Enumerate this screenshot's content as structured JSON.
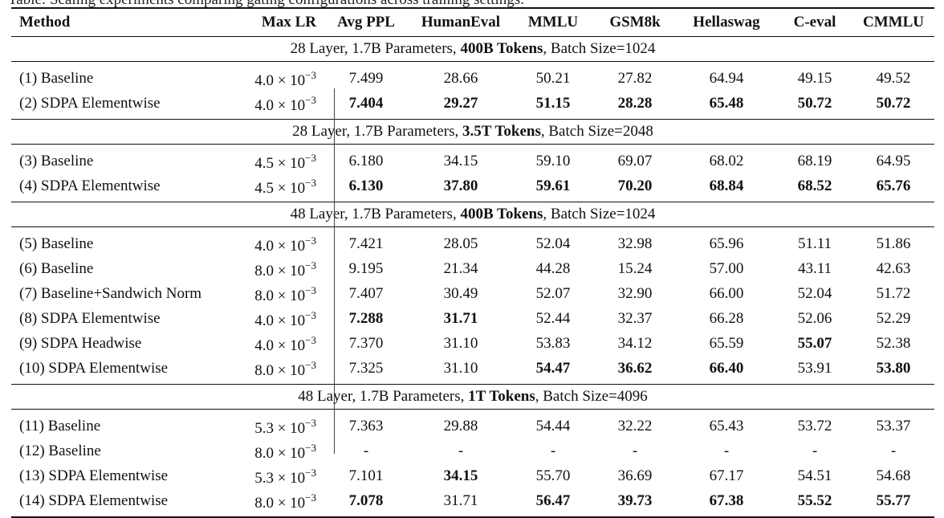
{
  "caption_fragment": "Table: Scaling experiments comparing gating configurations across training settings.",
  "headers": [
    "Method",
    "Max LR",
    "Avg PPL",
    "HumanEval",
    "MMLU",
    "GSM8k",
    "Hellaswag",
    "C-eval",
    "CMMLU"
  ],
  "sections": [
    {
      "prefix": "28 Layer, 1.7B Parameters, ",
      "tokens": "400B Tokens",
      "suffix": ", Batch Size=1024",
      "rows": [
        {
          "method": "(1) Baseline",
          "lr_base": "4.0 × 10",
          "lr_exp": "−3",
          "vals": [
            "7.499",
            "28.66",
            "50.21",
            "27.82",
            "64.94",
            "49.15",
            "49.52"
          ],
          "bold": [
            false,
            false,
            false,
            false,
            false,
            false,
            false
          ]
        },
        {
          "method": "(2) SDPA Elementwise",
          "lr_base": "4.0 × 10",
          "lr_exp": "−3",
          "vals": [
            "7.404",
            "29.27",
            "51.15",
            "28.28",
            "65.48",
            "50.72",
            "50.72"
          ],
          "bold": [
            true,
            true,
            true,
            true,
            true,
            true,
            true
          ]
        }
      ]
    },
    {
      "prefix": "28 Layer, 1.7B Parameters, ",
      "tokens": "3.5T Tokens",
      "suffix": ", Batch Size=2048",
      "rows": [
        {
          "method": "(3) Baseline",
          "lr_base": "4.5 × 10",
          "lr_exp": "−3",
          "vals": [
            "6.180",
            "34.15",
            "59.10",
            "69.07",
            "68.02",
            "68.19",
            "64.95"
          ],
          "bold": [
            false,
            false,
            false,
            false,
            false,
            false,
            false
          ]
        },
        {
          "method": "(4) SDPA Elementwise",
          "lr_base": "4.5 × 10",
          "lr_exp": "−3",
          "vals": [
            "6.130",
            "37.80",
            "59.61",
            "70.20",
            "68.84",
            "68.52",
            "65.76"
          ],
          "bold": [
            true,
            true,
            true,
            true,
            true,
            true,
            true
          ]
        }
      ]
    },
    {
      "prefix": "48 Layer, 1.7B Parameters, ",
      "tokens": "400B Tokens",
      "suffix": ", Batch Size=1024",
      "rows": [
        {
          "method": "(5) Baseline",
          "lr_base": "4.0 × 10",
          "lr_exp": "−3",
          "vals": [
            "7.421",
            "28.05",
            "52.04",
            "32.98",
            "65.96",
            "51.11",
            "51.86"
          ],
          "bold": [
            false,
            false,
            false,
            false,
            false,
            false,
            false
          ]
        },
        {
          "method": "(6) Baseline",
          "lr_base": "8.0 × 10",
          "lr_exp": "−3",
          "vals": [
            "9.195",
            "21.34",
            "44.28",
            "15.24",
            "57.00",
            "43.11",
            "42.63"
          ],
          "bold": [
            false,
            false,
            false,
            false,
            false,
            false,
            false
          ]
        },
        {
          "method": "(7) Baseline+Sandwich Norm",
          "lr_base": "8.0 × 10",
          "lr_exp": "−3",
          "vals": [
            "7.407",
            "30.49",
            "52.07",
            "32.90",
            "66.00",
            "52.04",
            "51.72"
          ],
          "bold": [
            false,
            false,
            false,
            false,
            false,
            false,
            false
          ]
        },
        {
          "method": "(8) SDPA Elementwise",
          "lr_base": "4.0 × 10",
          "lr_exp": "−3",
          "vals": [
            "7.288",
            "31.71",
            "52.44",
            "32.37",
            "66.28",
            "52.06",
            "52.29"
          ],
          "bold": [
            true,
            true,
            false,
            false,
            false,
            false,
            false
          ]
        },
        {
          "method": "(9) SDPA Headwise",
          "lr_base": "4.0 × 10",
          "lr_exp": "−3",
          "vals": [
            "7.370",
            "31.10",
            "53.83",
            "34.12",
            "65.59",
            "55.07",
            "52.38"
          ],
          "bold": [
            false,
            false,
            false,
            false,
            false,
            true,
            false
          ]
        },
        {
          "method": "(10) SDPA Elementwise",
          "lr_base": "8.0 × 10",
          "lr_exp": "−3",
          "vals": [
            "7.325",
            "31.10",
            "54.47",
            "36.62",
            "66.40",
            "53.91",
            "53.80"
          ],
          "bold": [
            false,
            false,
            true,
            true,
            true,
            false,
            true
          ]
        }
      ]
    },
    {
      "prefix": "48 Layer, 1.7B Parameters, ",
      "tokens": "1T Tokens",
      "suffix": ", Batch Size=4096",
      "rows": [
        {
          "method": "(11) Baseline",
          "lr_base": "5.3 × 10",
          "lr_exp": "−3",
          "vals": [
            "7.363",
            "29.88",
            "54.44",
            "32.22",
            "65.43",
            "53.72",
            "53.37"
          ],
          "bold": [
            false,
            false,
            false,
            false,
            false,
            false,
            false
          ]
        },
        {
          "method": "(12) Baseline",
          "lr_base": "8.0 × 10",
          "lr_exp": "−3",
          "vals": [
            "-",
            "-",
            "-",
            "-",
            "-",
            "-",
            "-"
          ],
          "bold": [
            false,
            false,
            false,
            false,
            false,
            false,
            false
          ]
        },
        {
          "method": "(13) SDPA Elementwise",
          "lr_base": "5.3 × 10",
          "lr_exp": "−3",
          "vals": [
            "7.101",
            "34.15",
            "55.70",
            "36.69",
            "67.17",
            "54.51",
            "54.68"
          ],
          "bold": [
            false,
            true,
            false,
            false,
            false,
            false,
            false
          ]
        },
        {
          "method": "(14) SDPA Elementwise",
          "lr_base": "8.0 × 10",
          "lr_exp": "−3",
          "vals": [
            "7.078",
            "31.71",
            "56.47",
            "39.73",
            "67.38",
            "55.52",
            "55.77"
          ],
          "bold": [
            true,
            false,
            true,
            true,
            true,
            true,
            true
          ]
        }
      ]
    }
  ]
}
